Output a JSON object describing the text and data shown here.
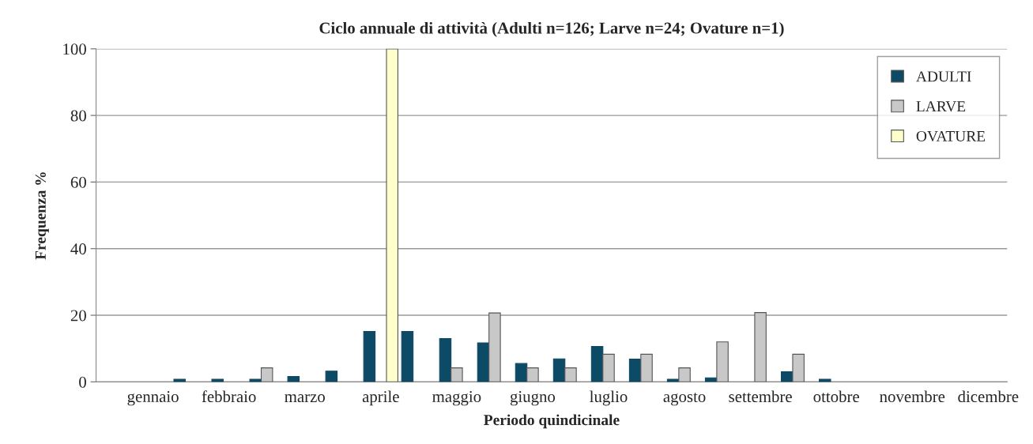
{
  "chart_data": {
    "type": "bar",
    "title": "Ciclo annuale di attività (Adulti n=126; Larve n=24; Ovature n=1)",
    "xlabel": "Periodo quindicinale",
    "ylabel": "Frequenza %",
    "categories": [
      null,
      "gennaio",
      null,
      "febbraio",
      null,
      "marzo",
      null,
      "aprile",
      null,
      "maggio",
      null,
      "giugno",
      null,
      "luglio",
      null,
      "agosto",
      null,
      "settembre",
      null,
      "ottobre",
      null,
      "novembre",
      null,
      "dicembre"
    ],
    "series": [
      {
        "name": "ADULTI",
        "color": "#0d4a66",
        "values": [
          null,
          null,
          0.8,
          0.8,
          0.8,
          1.6,
          3.2,
          15.1,
          15.1,
          13,
          11.7,
          5.5,
          6.9,
          10.6,
          6.8,
          0.8,
          1.2,
          null,
          3,
          0.8,
          null,
          null,
          null,
          null
        ]
      },
      {
        "name": "LARVE",
        "color": "#c8c8c8",
        "values": [
          null,
          null,
          null,
          null,
          4.2,
          null,
          null,
          null,
          null,
          4.2,
          20.7,
          4.2,
          4.2,
          8.3,
          8.3,
          4.2,
          12,
          20.8,
          8.3,
          null,
          null,
          null,
          null,
          null
        ]
      },
      {
        "name": "OVATURE",
        "color": "#ffffcc",
        "values": [
          null,
          null,
          null,
          null,
          null,
          null,
          null,
          100,
          null,
          null,
          null,
          null,
          null,
          null,
          null,
          null,
          null,
          null,
          null,
          null,
          null,
          null,
          null,
          null
        ]
      }
    ],
    "ylim": [
      0,
      100
    ],
    "yticks": [
      0,
      20,
      40,
      60,
      80,
      100
    ],
    "grid": "y",
    "legend": "top right"
  }
}
